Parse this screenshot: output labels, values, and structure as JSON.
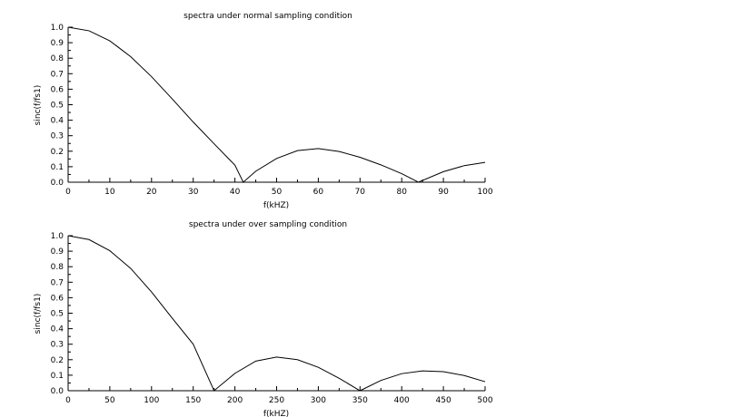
{
  "chart_data": [
    {
      "type": "line",
      "title": "spectra under normal sampling condition",
      "xlabel": "f(kHZ)",
      "ylabel": "sinc(f/fs1)",
      "xlim": [
        0,
        100
      ],
      "ylim": [
        0,
        1.0
      ],
      "xticks": [
        0,
        10,
        20,
        30,
        40,
        50,
        60,
        70,
        80,
        90,
        100
      ],
      "xtick_labels": [
        "0",
        "10",
        "20",
        "30",
        "40",
        "50",
        "60",
        "70",
        "80",
        "90",
        "100"
      ],
      "yticks": [
        0,
        0.1,
        0.2,
        0.3,
        0.4,
        0.5,
        0.6,
        0.7,
        0.8,
        0.9,
        1.0
      ],
      "ytick_labels": [
        "0.0",
        "0.1",
        "0.2",
        "0.3",
        "0.4",
        "0.5",
        "0.6",
        "0.7",
        "0.8",
        "0.9",
        "1.0"
      ],
      "grid": false,
      "series": [
        {
          "x": [
            0,
            5,
            10,
            15,
            20,
            25,
            30,
            35,
            40,
            42,
            45,
            50,
            55,
            60,
            65,
            70,
            75,
            80,
            84,
            90,
            95,
            100
          ],
          "y": [
            1.0,
            0.977,
            0.912,
            0.81,
            0.681,
            0.536,
            0.388,
            0.248,
            0.11,
            0.0,
            0.071,
            0.153,
            0.204,
            0.217,
            0.198,
            0.161,
            0.112,
            0.055,
            0.0,
            0.068,
            0.107,
            0.128
          ]
        }
      ]
    },
    {
      "type": "line",
      "title": "spectra under over sampling condition",
      "xlabel": "f(kHZ)",
      "ylabel": "sinc(f/fs1)",
      "xlim": [
        0,
        500
      ],
      "ylim": [
        0,
        1.0
      ],
      "xticks": [
        0,
        50,
        100,
        150,
        200,
        250,
        300,
        350,
        400,
        450,
        500
      ],
      "xtick_labels": [
        "0",
        "50",
        "100",
        "150",
        "200",
        "250",
        "300",
        "350",
        "400",
        "450",
        "500"
      ],
      "yticks": [
        0,
        0.1,
        0.2,
        0.3,
        0.4,
        0.5,
        0.6,
        0.7,
        0.8,
        0.9,
        1.0
      ],
      "ytick_labels": [
        "0.0",
        "0.1",
        "0.2",
        "0.3",
        "0.4",
        "0.5",
        "0.6",
        "0.7",
        "0.8",
        "0.9",
        "1.0"
      ],
      "grid": false,
      "series": [
        {
          "x": [
            0,
            25,
            50,
            75,
            100,
            125,
            150,
            175,
            200,
            225,
            250,
            275,
            300,
            325,
            350,
            375,
            400,
            425,
            450,
            475,
            500
          ],
          "y": [
            1.0,
            0.975,
            0.903,
            0.789,
            0.637,
            0.467,
            0.3,
            0.0,
            0.112,
            0.191,
            0.217,
            0.2,
            0.151,
            0.08,
            0.0,
            0.066,
            0.11,
            0.128,
            0.123,
            0.098,
            0.058
          ]
        }
      ]
    }
  ]
}
